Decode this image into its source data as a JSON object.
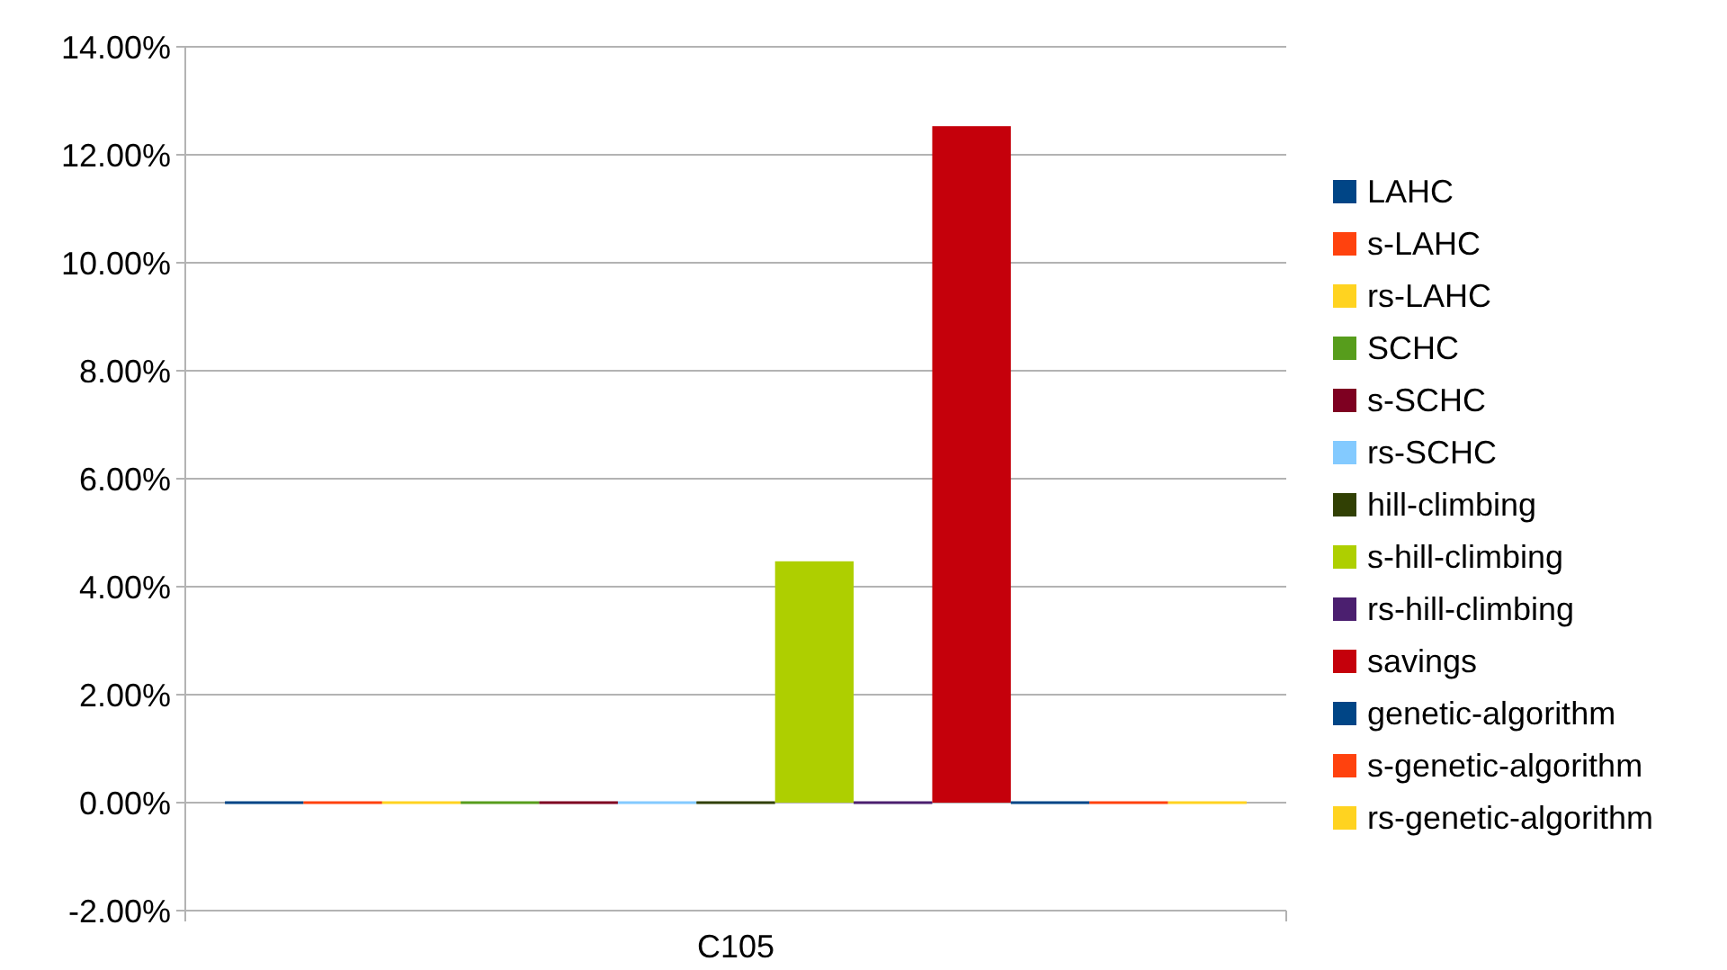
{
  "chart_data": {
    "type": "bar",
    "categories": [
      "C105"
    ],
    "series": [
      {
        "name": "LAHC",
        "color": "#004586",
        "values": [
          0
        ]
      },
      {
        "name": "s-LAHC",
        "color": "#ff420e",
        "values": [
          0
        ]
      },
      {
        "name": "rs-LAHC",
        "color": "#ffd320",
        "values": [
          0
        ]
      },
      {
        "name": "SCHC",
        "color": "#579d1c",
        "values": [
          0
        ]
      },
      {
        "name": "s-SCHC",
        "color": "#7e0021",
        "values": [
          0
        ]
      },
      {
        "name": "rs-SCHC",
        "color": "#83caff",
        "values": [
          0
        ]
      },
      {
        "name": "hill-climbing",
        "color": "#314004",
        "values": [
          0
        ]
      },
      {
        "name": "s-hill-climbing",
        "color": "#aecf00",
        "values": [
          4.47
        ]
      },
      {
        "name": "rs-hill-climbing",
        "color": "#4b1f6f",
        "values": [
          0
        ]
      },
      {
        "name": "savings",
        "color": "#c5000b",
        "values": [
          12.53
        ]
      },
      {
        "name": "genetic-algorithm",
        "color": "#004586",
        "values": [
          0
        ]
      },
      {
        "name": "s-genetic-algorithm",
        "color": "#ff420e",
        "values": [
          0
        ]
      },
      {
        "name": "rs-genetic-algorithm",
        "color": "#ffd320",
        "values": [
          0
        ]
      }
    ],
    "ylim": [
      -2,
      14
    ],
    "yticks": [
      {
        "value": -2,
        "label": "-2.00%"
      },
      {
        "value": 0,
        "label": "0.00%"
      },
      {
        "value": 2,
        "label": "2.00%"
      },
      {
        "value": 4,
        "label": "4.00%"
      },
      {
        "value": 6,
        "label": "6.00%"
      },
      {
        "value": 8,
        "label": "8.00%"
      },
      {
        "value": 10,
        "label": "10.00%"
      },
      {
        "value": 12,
        "label": "12.00%"
      },
      {
        "value": 14,
        "label": "14.00%"
      }
    ],
    "grid": "y",
    "legend": "right"
  }
}
